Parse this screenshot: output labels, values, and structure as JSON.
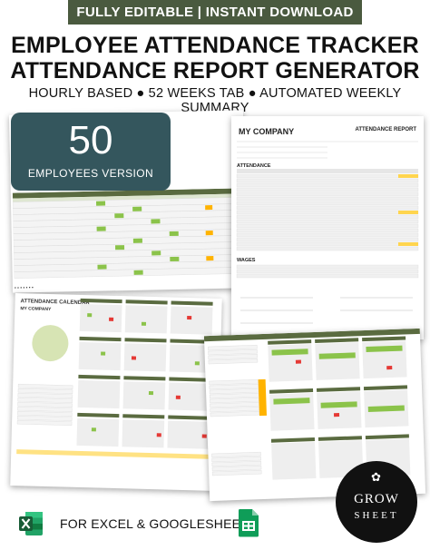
{
  "header": {
    "banner": "FULLY EDITABLE | INSTANT DOWNLOAD",
    "title_line1": "EMPLOYEE ATTENDANCE TRACKER",
    "title_line2": "ATTENDANCE REPORT GENERATOR",
    "subtitle": "HOURLY BASED ● 52 WEEKS TAB ● AUTOMATED WEEKLY SUMMARY"
  },
  "badge": {
    "number": "50",
    "label": "EMPLOYEES VERSION"
  },
  "report_preview": {
    "brand": "MY COMPANY",
    "title": "ATTENDANCE REPORT",
    "section_attendance": "ATTENDANCE",
    "section_wages": "WAGES"
  },
  "calendar_preview": {
    "title": "ATTENDANCE CALENDAR",
    "company": "MY COMPANY"
  },
  "logo": {
    "word1": "GROW",
    "word2": "SHEET"
  },
  "footer": {
    "text": "FOR EXCEL & GOOGLESHEETS"
  },
  "colors": {
    "banner": "#4a5a3f",
    "badge": "#34565d",
    "sheet_header": "#5a6b40",
    "present": "#8bc34a",
    "absent": "#e53935",
    "leave": "#ffb300",
    "excel": "#1d6f42",
    "sheets": "#0f9d58"
  },
  "icons": [
    "excel-icon",
    "google-sheets-icon",
    "grow-sheet-logo"
  ]
}
